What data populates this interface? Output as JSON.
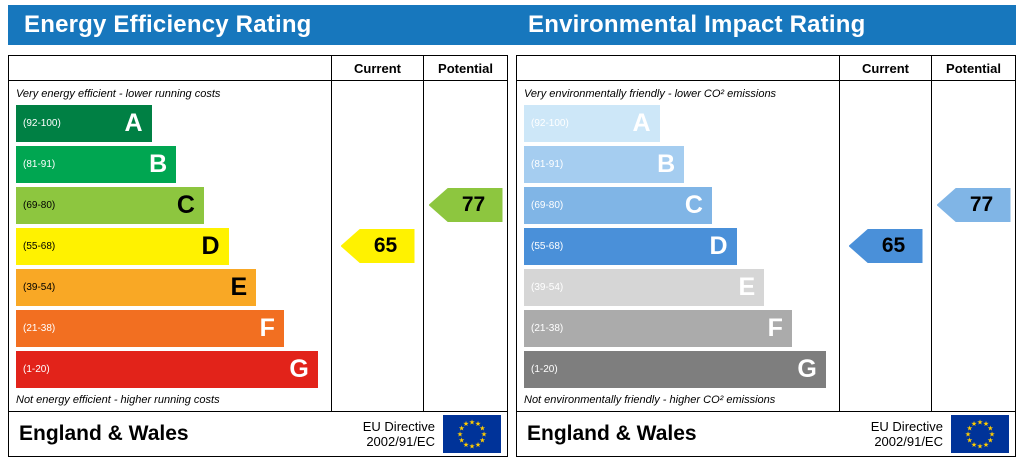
{
  "chart_data": [
    {
      "type": "bar",
      "title": "Energy Efficiency Rating",
      "categories": [
        "A (92-100)",
        "B (81-91)",
        "C (69-80)",
        "D (55-68)",
        "E (39-54)",
        "F (21-38)",
        "G (1-20)"
      ],
      "values": [
        44,
        52,
        61,
        69,
        78,
        87,
        98
      ],
      "current_rating": 65,
      "current_band": "D",
      "potential_rating": 77,
      "potential_band": "C",
      "xlabel": "",
      "ylabel": "",
      "legend": [
        "Current",
        "Potential"
      ],
      "notes": [
        "Very energy efficient - lower running costs",
        "Not energy efficient - higher running costs"
      ]
    },
    {
      "type": "bar",
      "title": "Environmental Impact Rating",
      "categories": [
        "A (92-100)",
        "B (81-91)",
        "C (69-80)",
        "D (55-68)",
        "E (39-54)",
        "F (21-38)",
        "G (1-20)"
      ],
      "values": [
        44,
        52,
        61,
        69,
        78,
        87,
        98
      ],
      "current_rating": 65,
      "current_band": "D",
      "potential_rating": 77,
      "potential_band": "C",
      "xlabel": "",
      "ylabel": "",
      "legend": [
        "Current",
        "Potential"
      ],
      "notes": [
        "Very environmentally friendly - lower CO² emissions",
        "Not environmentally friendly - higher CO² emissions"
      ]
    }
  ],
  "colors": {
    "header_bg": "#1777bd",
    "eu_flag_bg": "#003399",
    "eu_star": "#ffcc00"
  },
  "panels": [
    {
      "title": "Energy Efficiency Rating",
      "col_current": "Current",
      "col_potential": "Potential",
      "top_note": "Very energy efficient - lower running costs",
      "bottom_note": "Not energy efficient - higher running costs",
      "bands": [
        {
          "letter": "A",
          "range": "(92-100)",
          "color": "#008044",
          "fg": "#ffffff",
          "width": "44%"
        },
        {
          "letter": "B",
          "range": "(81-91)",
          "color": "#00a651",
          "fg": "#ffffff",
          "width": "52%"
        },
        {
          "letter": "C",
          "range": "(69-80)",
          "color": "#8dc63f",
          "fg": "#000000",
          "width": "61%"
        },
        {
          "letter": "D",
          "range": "(55-68)",
          "color": "#fff200",
          "fg": "#000000",
          "width": "69%"
        },
        {
          "letter": "E",
          "range": "(39-54)",
          "color": "#f9a825",
          "fg": "#000000",
          "width": "78%"
        },
        {
          "letter": "F",
          "range": "(21-38)",
          "color": "#f26f21",
          "fg": "#ffffff",
          "width": "87%"
        },
        {
          "letter": "G",
          "range": "(1-20)",
          "color": "#e2231a",
          "fg": "#ffffff",
          "width": "98%"
        }
      ],
      "current": {
        "value": "65",
        "band_index": 3,
        "color": "#fff200"
      },
      "potential": {
        "value": "77",
        "band_index": 2,
        "color": "#8dc63f"
      },
      "footer_region": "England & Wales",
      "footer_directive_1": "EU Directive",
      "footer_directive_2": "2002/91/EC"
    },
    {
      "title": "Environmental Impact Rating",
      "col_current": "Current",
      "col_potential": "Potential",
      "top_note": "Very environmentally friendly - lower CO² emissions",
      "bottom_note": "Not environmentally friendly - higher CO² emissions",
      "bands": [
        {
          "letter": "A",
          "range": "(92-100)",
          "color": "#cde7f8",
          "fg": "#ffffff",
          "width": "44%"
        },
        {
          "letter": "B",
          "range": "(81-91)",
          "color": "#a5cdf0",
          "fg": "#ffffff",
          "width": "52%"
        },
        {
          "letter": "C",
          "range": "(69-80)",
          "color": "#80b5e6",
          "fg": "#ffffff",
          "width": "61%"
        },
        {
          "letter": "D",
          "range": "(55-68)",
          "color": "#4a90d9",
          "fg": "#ffffff",
          "width": "69%"
        },
        {
          "letter": "E",
          "range": "(39-54)",
          "color": "#d6d6d6",
          "fg": "#ffffff",
          "width": "78%"
        },
        {
          "letter": "F",
          "range": "(21-38)",
          "color": "#ababab",
          "fg": "#ffffff",
          "width": "87%"
        },
        {
          "letter": "G",
          "range": "(1-20)",
          "color": "#7e7e7e",
          "fg": "#ffffff",
          "width": "98%"
        }
      ],
      "current": {
        "value": "65",
        "band_index": 3,
        "color": "#4a90d9"
      },
      "potential": {
        "value": "77",
        "band_index": 2,
        "color": "#80b5e6"
      },
      "footer_region": "England & Wales",
      "footer_directive_1": "EU Directive",
      "footer_directive_2": "2002/91/EC"
    }
  ]
}
